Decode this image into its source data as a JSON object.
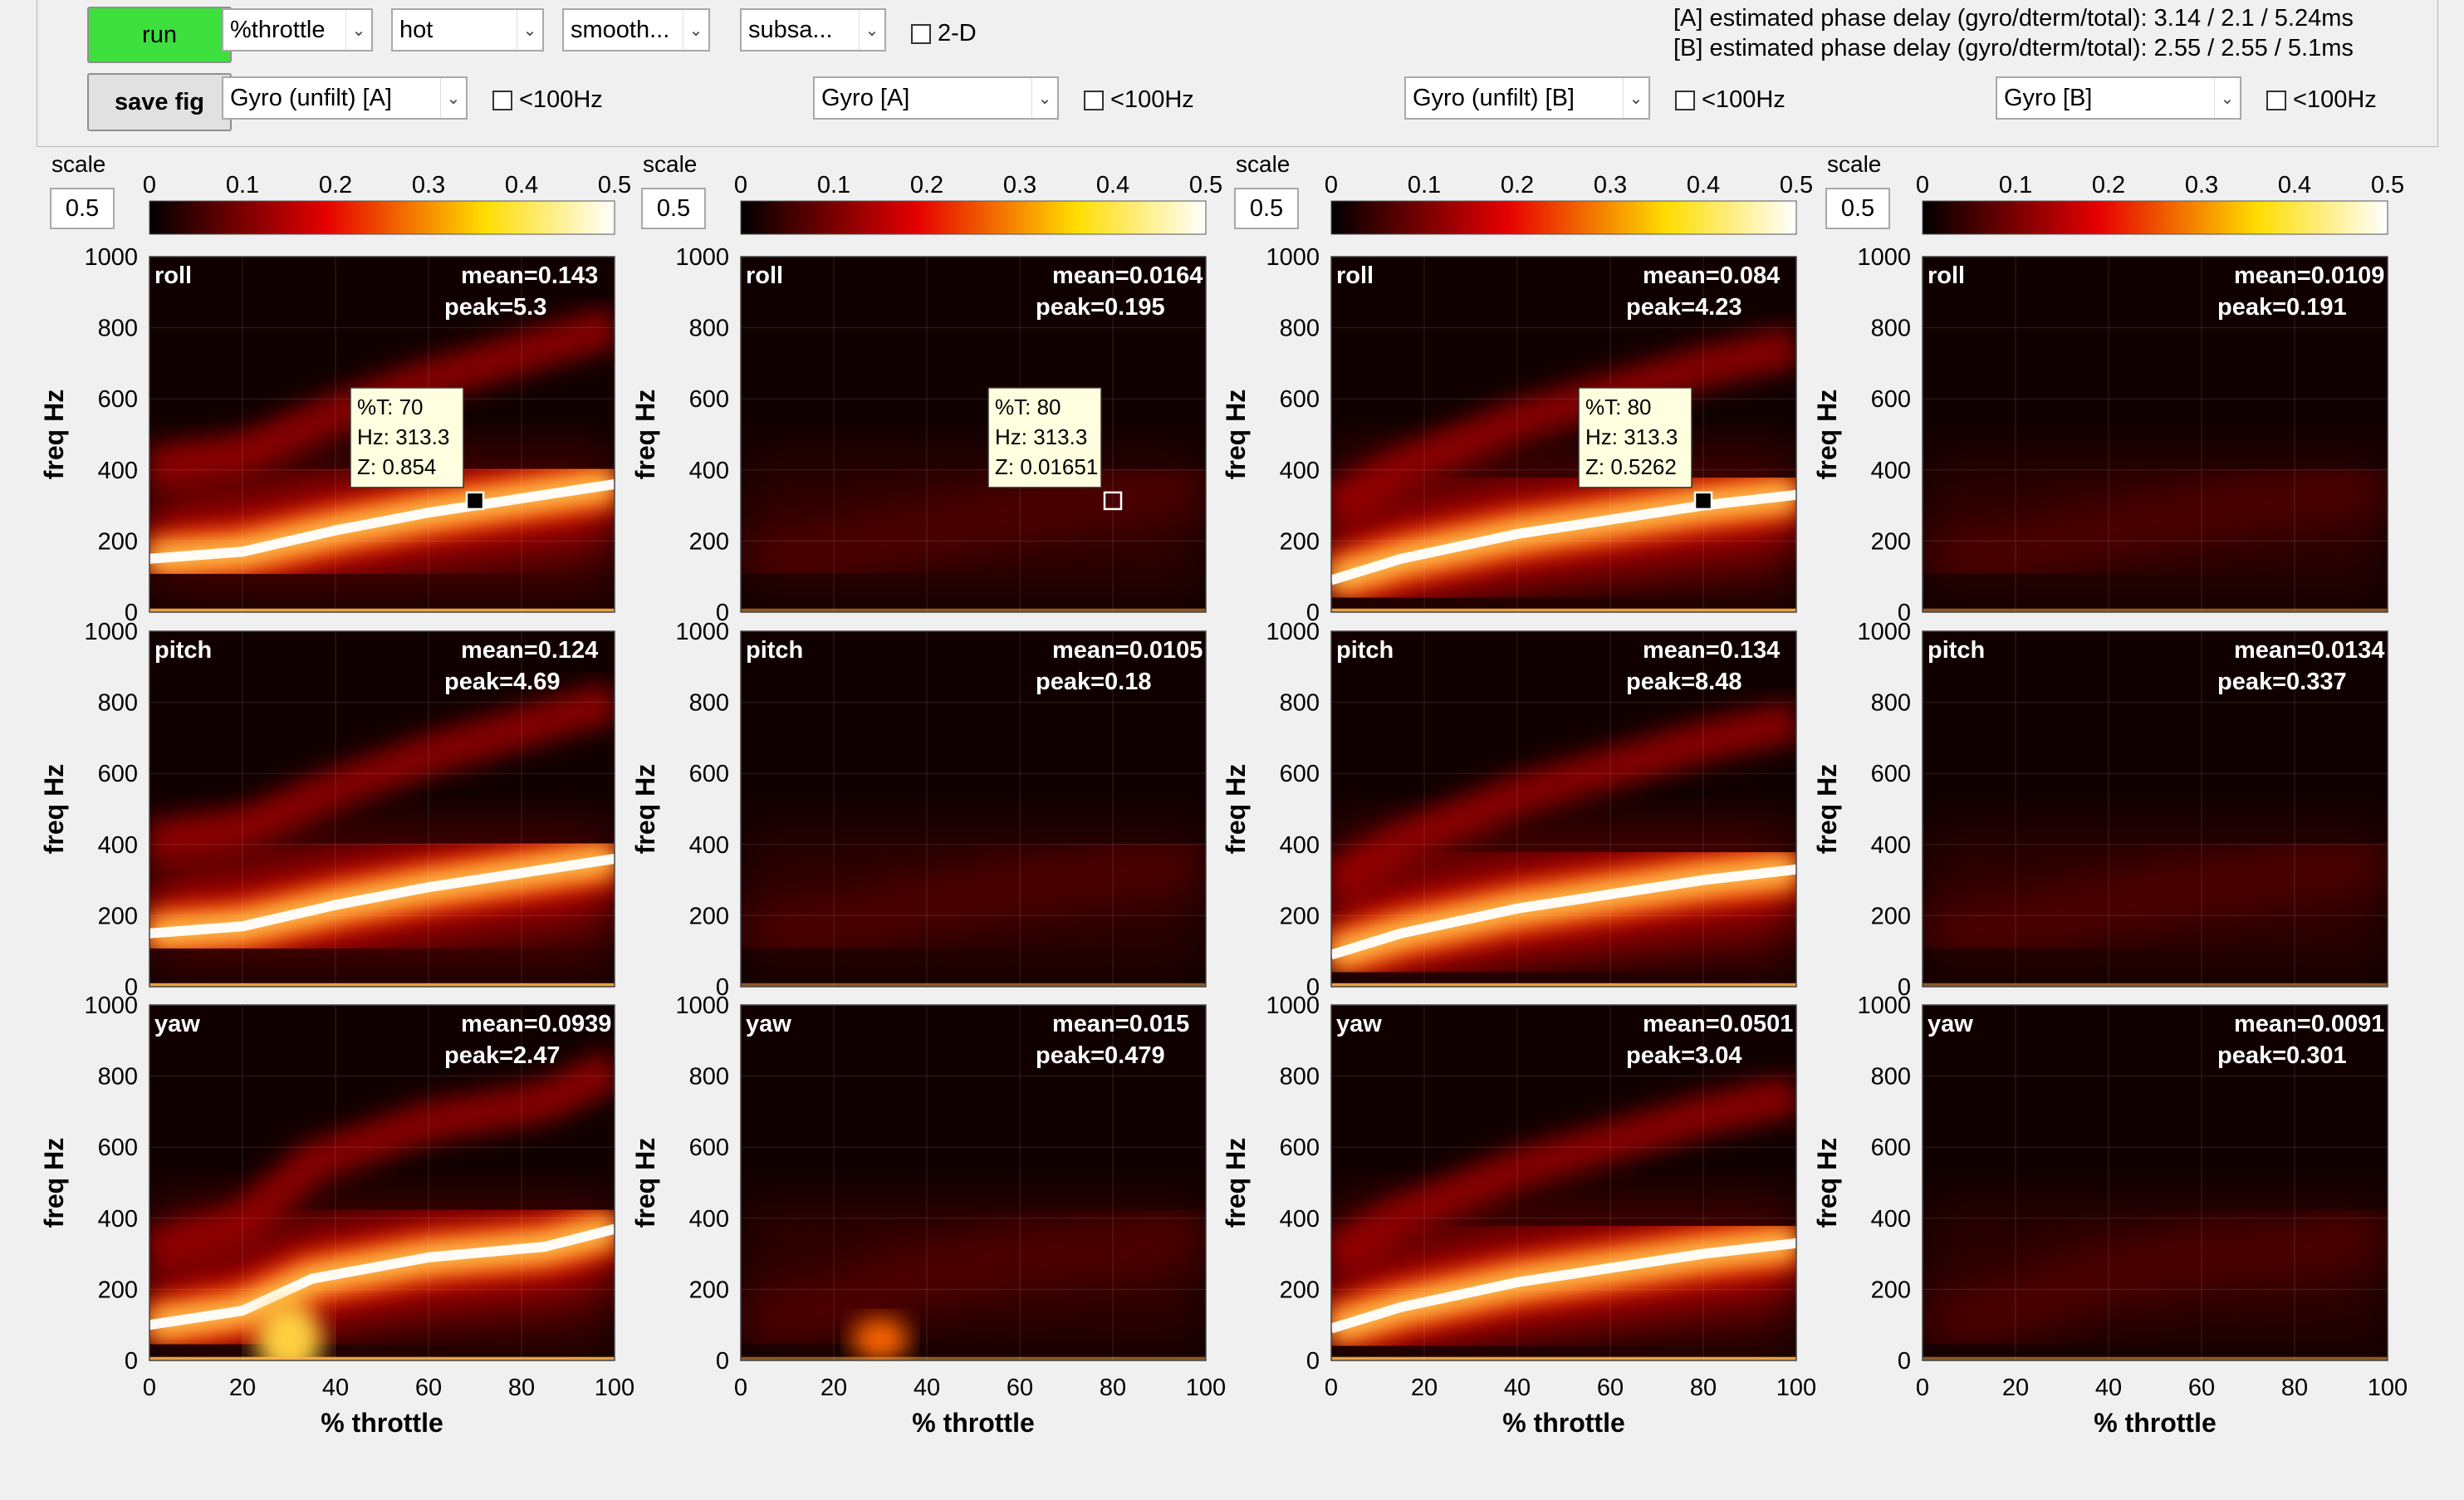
{
  "toolbar": {
    "run_label": "run",
    "save_label": "save fig",
    "x_mode": "%throttle",
    "colormap": "hot",
    "smoothing": "smooth...",
    "subsample": "subsa...",
    "twod_label": "2-D",
    "phase_delay_a": "[A] estimated phase delay (gyro/dterm/total): 3.14 / 2.1 / 5.24ms",
    "phase_delay_b": "[B] estimated phase delay (gyro/dterm/total): 2.55 / 2.55 / 5.1ms"
  },
  "colors": {
    "run": "#3ee03e",
    "cmap_start": "#000000",
    "cmap_mid": "#e60000",
    "cmap_high": "#ffdd00",
    "cmap_end": "#ffffff"
  },
  "columns": [
    {
      "source": "Gyro (unfilt) [A]",
      "lt100": "<100Hz",
      "scale_label": "scale",
      "scale": "0.5"
    },
    {
      "source": "Gyro [A]",
      "lt100": "<100Hz",
      "scale_label": "scale",
      "scale": "0.5"
    },
    {
      "source": "Gyro (unfilt) [B]",
      "lt100": "<100Hz",
      "scale_label": "scale",
      "scale": "0.5"
    },
    {
      "source": "Gyro [B]",
      "lt100": "<100Hz",
      "scale_label": "scale",
      "scale": "0.5"
    }
  ],
  "chart_data": {
    "type": "heatmap",
    "xlabel": "% throttle",
    "ylabel": "freq Hz",
    "xlim": [
      0,
      100
    ],
    "ylim": [
      0,
      1000
    ],
    "x_ticks": [
      0,
      20,
      40,
      60,
      80,
      100
    ],
    "y_ticks": [
      0,
      200,
      400,
      600,
      800,
      1000
    ],
    "colorbar": {
      "range": [
        0,
        0.5
      ],
      "ticks": [
        "0",
        "0.1",
        "0.2",
        "0.3",
        "0.4",
        "0.5"
      ]
    },
    "panels": [
      {
        "col": 0,
        "row": 0,
        "axis": "roll",
        "mean": "mean=0.143",
        "peak": "peak=5.3",
        "intensity": 1.0,
        "tooltip": {
          "t": "%T: 70",
          "hz": "Hz: 313.3",
          "z": "Z: 0.854",
          "x": 70,
          "y": 313.3
        }
      },
      {
        "col": 0,
        "row": 1,
        "axis": "pitch",
        "mean": "mean=0.124",
        "peak": "peak=4.69",
        "intensity": 1.0
      },
      {
        "col": 0,
        "row": 2,
        "axis": "yaw",
        "mean": "mean=0.0939",
        "peak": "peak=2.47",
        "intensity": 0.9
      },
      {
        "col": 1,
        "row": 0,
        "axis": "roll",
        "mean": "mean=0.0164",
        "peak": "peak=0.195",
        "intensity": 0.18,
        "tooltip": {
          "t": "%T: 80",
          "hz": "Hz: 313.3",
          "z": "Z: 0.01651",
          "x": 80,
          "y": 313.3
        }
      },
      {
        "col": 1,
        "row": 1,
        "axis": "pitch",
        "mean": "mean=0.0105",
        "peak": "peak=0.18",
        "intensity": 0.14
      },
      {
        "col": 1,
        "row": 2,
        "axis": "yaw",
        "mean": "mean=0.015",
        "peak": "peak=0.479",
        "intensity": 0.25
      },
      {
        "col": 2,
        "row": 0,
        "axis": "roll",
        "mean": "mean=0.084",
        "peak": "peak=4.23",
        "intensity": 0.95,
        "tooltip": {
          "t": "%T: 80",
          "hz": "Hz: 313.3",
          "z": "Z: 0.5262",
          "x": 80,
          "y": 313.3
        }
      },
      {
        "col": 2,
        "row": 1,
        "axis": "pitch",
        "mean": "mean=0.134",
        "peak": "peak=8.48",
        "intensity": 1.0
      },
      {
        "col": 2,
        "row": 2,
        "axis": "yaw",
        "mean": "mean=0.0501",
        "peak": "peak=3.04",
        "intensity": 0.9
      },
      {
        "col": 3,
        "row": 0,
        "axis": "roll",
        "mean": "mean=0.0109",
        "peak": "peak=0.191",
        "intensity": 0.12
      },
      {
        "col": 3,
        "row": 1,
        "axis": "pitch",
        "mean": "mean=0.0134",
        "peak": "peak=0.337",
        "intensity": 0.16
      },
      {
        "col": 3,
        "row": 2,
        "axis": "yaw",
        "mean": "mean=0.0091",
        "peak": "peak=0.301",
        "intensity": 0.14
      }
    ]
  }
}
